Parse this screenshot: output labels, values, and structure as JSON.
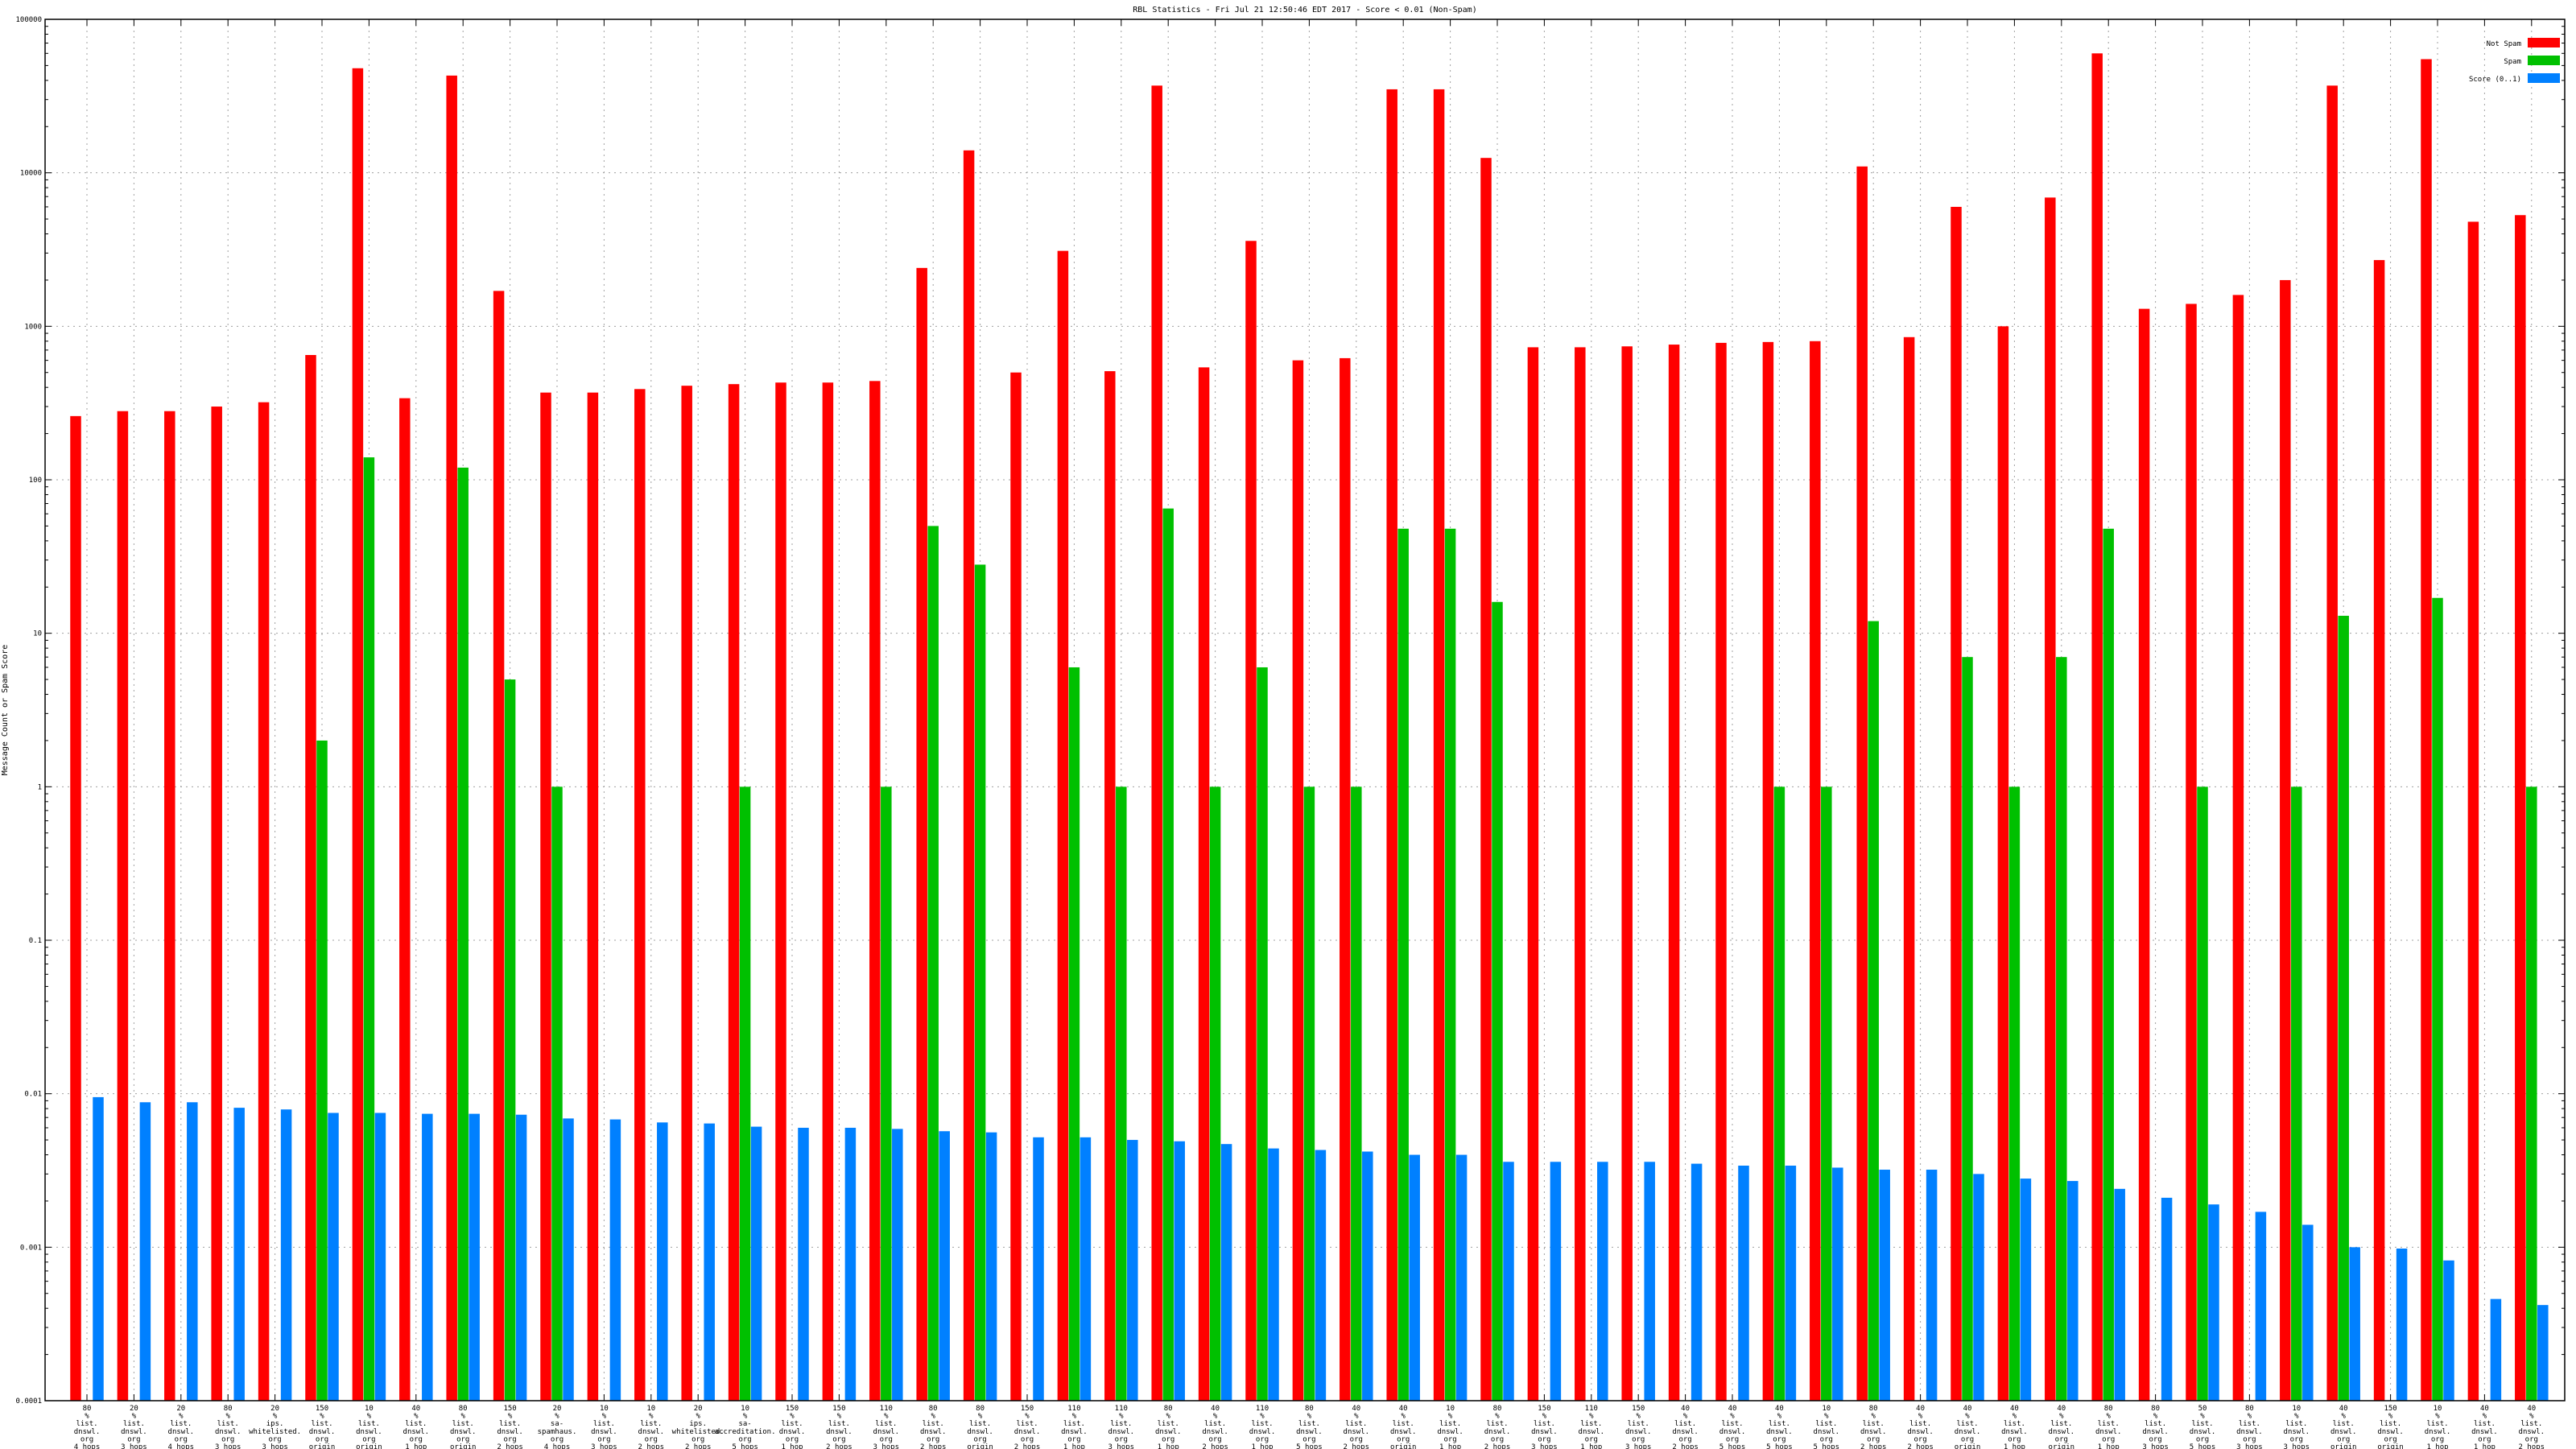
{
  "chart_data": {
    "type": "bar",
    "title": "RBL Statistics - Fri Jul 21 12:50:46 EDT 2017 - Score < 0.01 (Non-Spam)",
    "ylabel": "Message Count or Spam Score",
    "xlabel": "",
    "yscale": "log",
    "ylim": [
      0.0001,
      100000
    ],
    "yticks": [
      "0.0001",
      "0.001",
      "0.01",
      "0.1",
      "1",
      "10",
      "100",
      "1000",
      "10000",
      "100000"
    ],
    "grid": true,
    "legend_position": "top-right",
    "categories": [
      [
        "80",
        "%",
        "list.",
        "dnswl.",
        "org",
        "4 hops"
      ],
      [
        "20",
        "%",
        "list.",
        "dnswl.",
        "org",
        "3 hops"
      ],
      [
        "20",
        "%",
        "list.",
        "dnswl.",
        "org",
        "4 hops"
      ],
      [
        "80",
        "%",
        "list.",
        "dnswl.",
        "org",
        "3 hops"
      ],
      [
        "20",
        "%",
        "ips.",
        "whitelisted.",
        "org",
        "3 hops"
      ],
      [
        "150",
        "%",
        "list.",
        "dnswl.",
        "org",
        "origin"
      ],
      [
        "10",
        "%",
        "list.",
        "dnswl.",
        "org",
        "origin"
      ],
      [
        "40",
        "%",
        "list.",
        "dnswl.",
        "org",
        "1 hop"
      ],
      [
        "80",
        "%",
        "list.",
        "dnswl.",
        "org",
        "origin"
      ],
      [
        "150",
        "%",
        "list.",
        "dnswl.",
        "org",
        "2 hops"
      ],
      [
        "20",
        "%",
        "sa-",
        "spamhaus.",
        "org",
        "4 hops"
      ],
      [
        "10",
        "%",
        "list.",
        "dnswl.",
        "org",
        "3 hops"
      ],
      [
        "10",
        "%",
        "list.",
        "dnswl.",
        "org",
        "2 hops"
      ],
      [
        "20",
        "%",
        "ips.",
        "whitelisted.",
        "org",
        "2 hops"
      ],
      [
        "10",
        "%",
        "sa-",
        "accreditation.",
        "org",
        "5 hops"
      ],
      [
        "150",
        "%",
        "list.",
        "dnswl.",
        "org",
        "1 hop"
      ],
      [
        "150",
        "%",
        "list.",
        "dnswl.",
        "org",
        "2 hops"
      ],
      [
        "110",
        "%",
        "list.",
        "dnswl.",
        "org",
        "3 hops"
      ],
      [
        "80",
        "%",
        "list.",
        "dnswl.",
        "org",
        "2 hops"
      ],
      [
        "80",
        "%",
        "list.",
        "dnswl.",
        "org",
        "origin"
      ],
      [
        "150",
        "%",
        "list.",
        "dnswl.",
        "org",
        "2 hops"
      ],
      [
        "110",
        "%",
        "list.",
        "dnswl.",
        "org",
        "1 hop"
      ],
      [
        "110",
        "%",
        "list.",
        "dnswl.",
        "org",
        "3 hops"
      ],
      [
        "80",
        "%",
        "list.",
        "dnswl.",
        "org",
        "1 hop"
      ],
      [
        "40",
        "%",
        "list.",
        "dnswl.",
        "org",
        "2 hops"
      ],
      [
        "110",
        "%",
        "list.",
        "dnswl.",
        "org",
        "1 hop"
      ],
      [
        "80",
        "%",
        "list.",
        "dnswl.",
        "org",
        "5 hops"
      ],
      [
        "40",
        "%",
        "list.",
        "dnswl.",
        "org",
        "2 hops"
      ],
      [
        "40",
        "%",
        "list.",
        "dnswl.",
        "org",
        "origin"
      ],
      [
        "10",
        "%",
        "list.",
        "dnswl.",
        "org",
        "1 hop"
      ],
      [
        "80",
        "%",
        "list.",
        "dnswl.",
        "org",
        "2 hops"
      ],
      [
        "150",
        "%",
        "list.",
        "dnswl.",
        "org",
        "3 hops"
      ],
      [
        "110",
        "%",
        "list.",
        "dnswl.",
        "org",
        "1 hop"
      ],
      [
        "150",
        "%",
        "list.",
        "dnswl.",
        "org",
        "3 hops"
      ],
      [
        "40",
        "%",
        "list.",
        "dnswl.",
        "org",
        "2 hops"
      ],
      [
        "40",
        "%",
        "list.",
        "dnswl.",
        "org",
        "5 hops"
      ],
      [
        "40",
        "%",
        "list.",
        "dnswl.",
        "org",
        "5 hops"
      ],
      [
        "10",
        "%",
        "list.",
        "dnswl.",
        "org",
        "5 hops"
      ],
      [
        "80",
        "%",
        "list.",
        "dnswl.",
        "org",
        "2 hops"
      ],
      [
        "40",
        "%",
        "list.",
        "dnswl.",
        "org",
        "2 hops"
      ],
      [
        "40",
        "%",
        "list.",
        "dnswl.",
        "org",
        "origin"
      ],
      [
        "40",
        "%",
        "list.",
        "dnswl.",
        "org",
        "1 hop"
      ],
      [
        "40",
        "%",
        "list.",
        "dnswl.",
        "org",
        "origin"
      ],
      [
        "80",
        "%",
        "list.",
        "dnswl.",
        "org",
        "1 hop"
      ],
      [
        "80",
        "%",
        "list.",
        "dnswl.",
        "org",
        "3 hops"
      ],
      [
        "50",
        "%",
        "list.",
        "dnswl.",
        "org",
        "5 hops"
      ],
      [
        "80",
        "%",
        "list.",
        "dnswl.",
        "org",
        "3 hops"
      ],
      [
        "10",
        "%",
        "list.",
        "dnswl.",
        "org",
        "3 hops"
      ],
      [
        "40",
        "%",
        "list.",
        "dnswl.",
        "org",
        "origin"
      ],
      [
        "150",
        "%",
        "list.",
        "dnswl.",
        "org",
        "origin"
      ],
      [
        "10",
        "%",
        "list.",
        "dnswl.",
        "org",
        "1 hop"
      ],
      [
        "40",
        "%",
        "list.",
        "dnswl.",
        "org",
        "1 hop"
      ],
      [
        "40",
        "%",
        "list.",
        "dnswl.",
        "org",
        "2 hops"
      ]
    ],
    "series": [
      {
        "name": "Not Spam",
        "color": "#ff0000",
        "values": [
          260,
          280,
          280,
          300,
          320,
          650,
          48000,
          340,
          43000,
          1700,
          370,
          370,
          390,
          410,
          420,
          430,
          430,
          440,
          2400,
          14000,
          500,
          3100,
          510,
          37000,
          540,
          3600,
          600,
          620,
          35000,
          35000,
          12500,
          730,
          730,
          740,
          760,
          780,
          790,
          800,
          11000,
          850,
          6000,
          1000,
          6900,
          60000,
          1300,
          1400,
          1600,
          2000,
          37000,
          2700,
          55000,
          4800,
          5300
        ]
      },
      {
        "name": "Spam",
        "color": "#00c000",
        "values": [
          null,
          null,
          null,
          null,
          null,
          2,
          140,
          null,
          120,
          5,
          1,
          null,
          null,
          null,
          1,
          null,
          null,
          1,
          50,
          28,
          null,
          6,
          1,
          65,
          1,
          6,
          1,
          1,
          48,
          48,
          16,
          null,
          null,
          null,
          null,
          null,
          1,
          1,
          12,
          null,
          7,
          1,
          7,
          48,
          null,
          1,
          null,
          1,
          13,
          null,
          17,
          null,
          1
        ]
      },
      {
        "name": "Score (0..1)",
        "color": "#0080ff",
        "values": [
          0.0095,
          0.0088,
          0.0088,
          0.0081,
          0.0079,
          0.0075,
          0.0075,
          0.0074,
          0.0074,
          0.0073,
          0.0069,
          0.0068,
          0.0065,
          0.0064,
          0.0061,
          0.006,
          0.006,
          0.0059,
          0.0057,
          0.0056,
          0.0052,
          0.0052,
          0.005,
          0.0049,
          0.0047,
          0.0044,
          0.0043,
          0.0042,
          0.004,
          0.004,
          0.0036,
          0.0036,
          0.0036,
          0.0036,
          0.0035,
          0.0034,
          0.0034,
          0.0033,
          0.0032,
          0.0032,
          0.003,
          0.0028,
          0.0027,
          0.0024,
          0.0021,
          0.0019,
          0.0017,
          0.0014,
          0.001,
          0.00098,
          0.00082,
          0.00046,
          0.00042
        ]
      }
    ]
  }
}
